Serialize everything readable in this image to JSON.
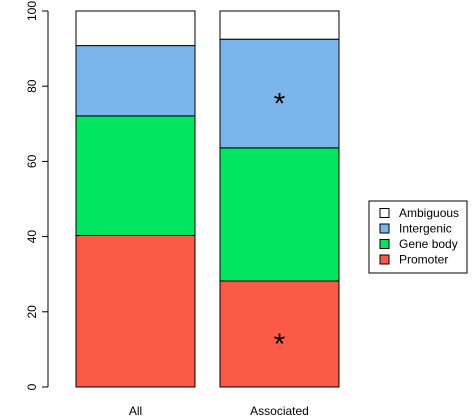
{
  "chart_data": {
    "type": "bar",
    "stacked": true,
    "categories": [
      "All",
      "Associated"
    ],
    "ylim": [
      0,
      100
    ],
    "yticks": [
      "0",
      "20",
      "40",
      "60",
      "80",
      "100"
    ],
    "series": [
      {
        "name": "Promoter",
        "color": "#fa5a46",
        "values": [
          40.3,
          28.2
        ]
      },
      {
        "name": "Gene body",
        "color": "#00e660",
        "values": [
          31.8,
          35.4
        ]
      },
      {
        "name": "Intergenic",
        "color": "#7ab6ec",
        "values": [
          18.7,
          28.9
        ]
      },
      {
        "name": "Ambiguous",
        "color": "#ffffff",
        "values": [
          9.2,
          7.5
        ]
      }
    ],
    "legend": {
      "position": "right",
      "order": [
        "Ambiguous",
        "Intergenic",
        "Gene body",
        "Promoter"
      ]
    },
    "annotations": [
      {
        "text": "*",
        "category": "Associated",
        "series": "Intergenic"
      },
      {
        "text": "*",
        "category": "Associated",
        "series": "Promoter"
      }
    ]
  }
}
